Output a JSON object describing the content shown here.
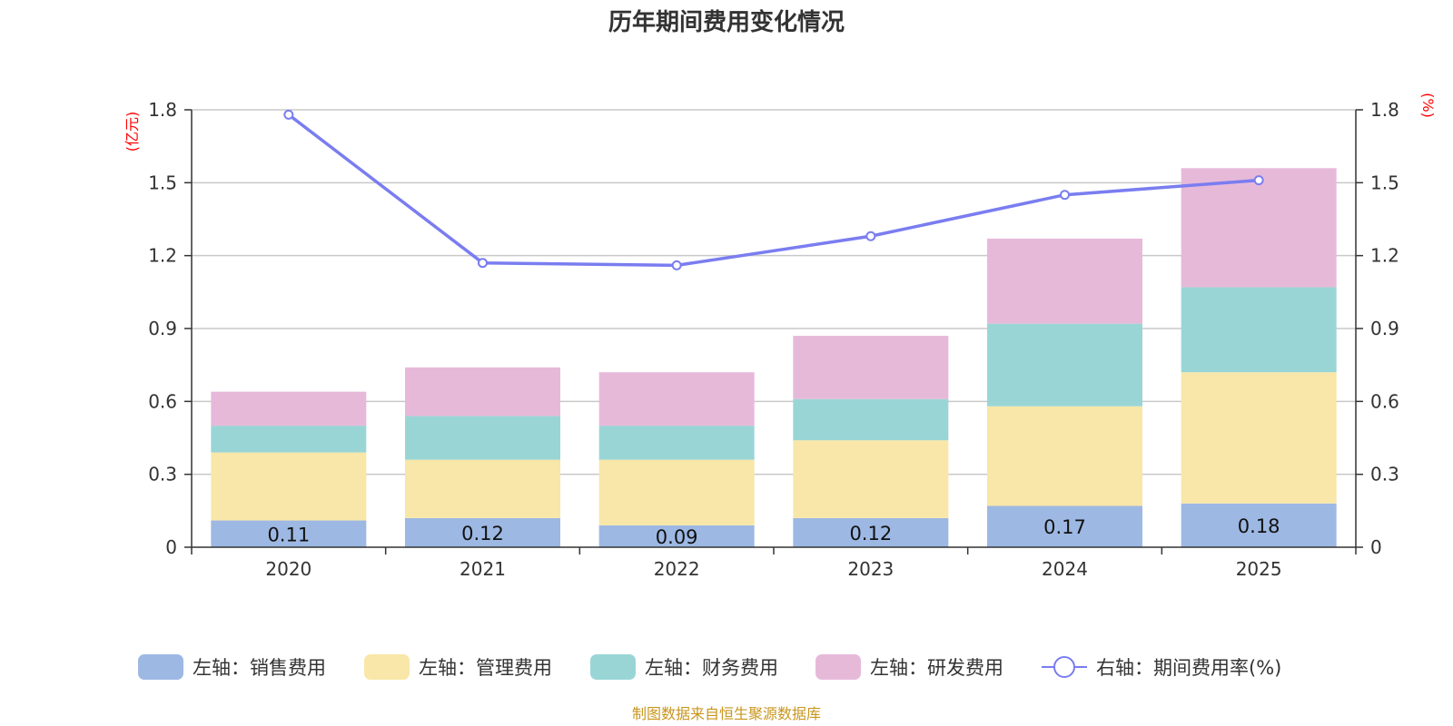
{
  "chart_data": {
    "type": "bar",
    "title": "历年期间费用变化情况",
    "categories": [
      "2020",
      "2021",
      "2022",
      "2023",
      "2024",
      "2025"
    ],
    "left_axis": {
      "unit": "(亿元)",
      "ylim": [
        0,
        1.8
      ],
      "ticks": [
        "0",
        "0.3",
        "0.6",
        "0.9",
        "1.2",
        "1.5",
        "1.8"
      ]
    },
    "right_axis": {
      "unit": "(%)",
      "ylim": [
        0,
        1.8
      ],
      "ticks": [
        "0",
        "0.3",
        "0.6",
        "0.9",
        "1.2",
        "1.5",
        "1.8"
      ]
    },
    "series": [
      {
        "name": "左轴：销售费用",
        "type": "bar",
        "stack": true,
        "color": "#9db8e3",
        "values": [
          0.11,
          0.12,
          0.09,
          0.12,
          0.17,
          0.18
        ],
        "labels": [
          "0.11",
          "0.12",
          "0.09",
          "0.12",
          "0.17",
          "0.18"
        ]
      },
      {
        "name": "左轴：管理费用",
        "type": "bar",
        "stack": true,
        "color": "#f8e7a8",
        "values": [
          0.28,
          0.24,
          0.27,
          0.32,
          0.41,
          0.54
        ]
      },
      {
        "name": "左轴：财务费用",
        "type": "bar",
        "stack": true,
        "color": "#9ad5d6",
        "values": [
          0.11,
          0.18,
          0.14,
          0.17,
          0.34,
          0.35
        ]
      },
      {
        "name": "左轴：研发费用",
        "type": "bar",
        "stack": true,
        "color": "#e7b9d9",
        "values": [
          0.14,
          0.2,
          0.22,
          0.26,
          0.35,
          0.49
        ]
      },
      {
        "name": "右轴：期间费用率(%)",
        "type": "line",
        "axis": "right",
        "color": "#7a7df0",
        "values": [
          1.78,
          1.17,
          1.16,
          1.28,
          1.45,
          1.51
        ]
      }
    ],
    "grid": true,
    "legend_position": "bottom"
  },
  "source": "制图数据来自恒生聚源数据库"
}
